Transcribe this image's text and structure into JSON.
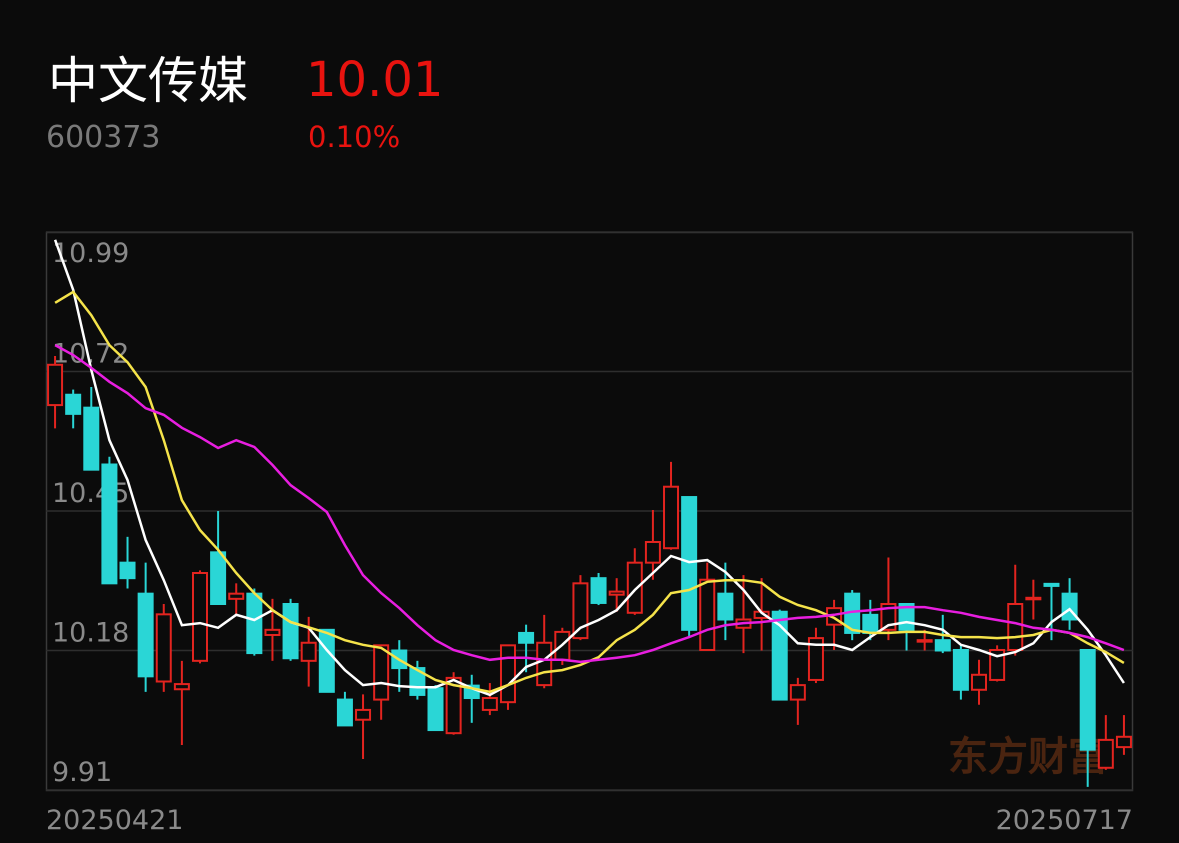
{
  "header": {
    "name": "中文传媒",
    "price": "10.01",
    "code": "600373",
    "change": "0.10%"
  },
  "chart_data": {
    "type": "candlestick",
    "watermark": "东方财富",
    "categories": [
      "20250421",
      null,
      null,
      null,
      null,
      null,
      null,
      null,
      null,
      null,
      null,
      null,
      null,
      null,
      null,
      null,
      null,
      null,
      null,
      null,
      null,
      null,
      null,
      null,
      null,
      null,
      null,
      null,
      null,
      null,
      null,
      null,
      null,
      null,
      null,
      null,
      null,
      null,
      null,
      null,
      null,
      null,
      null,
      null,
      null,
      null,
      null,
      null,
      null,
      null,
      null,
      null,
      null,
      null,
      null,
      null,
      null,
      null,
      null,
      "20250717"
    ],
    "open": [
      10.655,
      10.675,
      10.65,
      10.54,
      10.35,
      10.29,
      10.12,
      10.105,
      10.16,
      10.37,
      10.28,
      10.29,
      10.21,
      10.27,
      10.16,
      10.22,
      10.085,
      10.046,
      10.085,
      10.18,
      10.146,
      10.107,
      10.02,
      10.112,
      10.065,
      10.08,
      10.214,
      10.113,
      10.162,
      10.204,
      10.32,
      10.288,
      10.253,
      10.35,
      10.378,
      10.477,
      10.181,
      10.29,
      10.224,
      10.243,
      10.255,
      10.085,
      10.123,
      10.23,
      10.29,
      10.249,
      10.22,
      10.27,
      10.2,
      10.2,
      10.181,
      10.104,
      10.123,
      10.181,
      10.28,
      10.309,
      10.29,
      10.181,
      9.953,
      9.993
    ],
    "high": [
      10.75,
      10.685,
      10.69,
      10.555,
      10.4,
      10.35,
      10.27,
      10.16,
      10.335,
      10.45,
      10.31,
      10.3,
      10.28,
      10.28,
      10.245,
      10.22,
      10.1,
      10.095,
      10.19,
      10.2,
      10.16,
      10.113,
      10.138,
      10.133,
      10.117,
      10.19,
      10.23,
      10.249,
      10.224,
      10.326,
      10.33,
      10.32,
      10.378,
      10.452,
      10.545,
      10.477,
      10.35,
      10.35,
      10.326,
      10.32,
      10.259,
      10.127,
      10.224,
      10.278,
      10.297,
      10.278,
      10.36,
      10.27,
      10.22,
      10.249,
      10.19,
      10.162,
      10.19,
      10.346,
      10.317,
      10.31,
      10.32,
      10.181,
      10.055,
      10.055
    ],
    "low": [
      10.61,
      10.61,
      10.53,
      10.31,
      10.3,
      10.1,
      10.1,
      9.997,
      10.155,
      10.27,
      10.25,
      10.17,
      10.16,
      10.16,
      10.11,
      10.1,
      10.035,
      9.97,
      10.046,
      10.1,
      10.085,
      10.026,
      10.017,
      10.04,
      10.055,
      10.065,
      10.138,
      10.107,
      10.152,
      10.2,
      10.268,
      10.255,
      10.249,
      10.317,
      10.375,
      10.206,
      10.181,
      10.2,
      10.175,
      10.18,
      10.085,
      10.036,
      10.117,
      10.181,
      10.2,
      10.2,
      10.2,
      10.18,
      10.18,
      10.175,
      10.085,
      10.075,
      10.12,
      10.17,
      10.24,
      10.2,
      10.22,
      9.916,
      9.949,
      9.978
    ],
    "close": [
      10.733,
      10.638,
      10.53,
      10.31,
      10.32,
      10.13,
      10.25,
      10.115,
      10.33,
      10.27,
      10.29,
      10.175,
      10.22,
      10.165,
      10.195,
      10.1,
      10.035,
      10.065,
      10.19,
      10.146,
      10.094,
      10.026,
      10.127,
      10.088,
      10.088,
      10.19,
      10.195,
      10.195,
      10.216,
      10.31,
      10.272,
      10.294,
      10.35,
      10.39,
      10.497,
      10.22,
      10.317,
      10.24,
      10.24,
      10.255,
      10.085,
      10.113,
      10.204,
      10.262,
      10.214,
      10.214,
      10.27,
      10.22,
      10.2,
      10.18,
      10.104,
      10.133,
      10.181,
      10.27,
      10.282,
      10.305,
      10.24,
      9.988,
      10.007,
      10.013
    ],
    "up_color": "#e3241f",
    "down_color": "#2ad6d6",
    "moving_averages": [
      {
        "color": "#ffffff",
        "values": [
          10.975,
          10.878,
          10.723,
          10.587,
          10.51,
          10.394,
          10.316,
          10.229,
          10.233,
          10.224,
          10.249,
          10.239,
          10.258,
          10.235,
          10.224,
          10.181,
          10.142,
          10.113,
          10.117,
          10.111,
          10.109,
          10.109,
          10.123,
          10.107,
          10.094,
          10.113,
          10.148,
          10.162,
          10.191,
          10.224,
          10.239,
          10.258,
          10.297,
          10.33,
          10.363,
          10.351,
          10.355,
          10.332,
          10.297,
          10.253,
          10.229,
          10.194,
          10.191,
          10.191,
          10.181,
          10.206,
          10.229,
          10.235,
          10.229,
          10.22,
          10.191,
          10.181,
          10.169,
          10.177,
          10.194,
          10.235,
          10.26,
          10.22,
          10.171,
          10.117
        ]
      },
      {
        "color": "#f5e34a",
        "values": [
          10.853,
          10.874,
          10.829,
          10.771,
          10.738,
          10.69,
          10.587,
          10.471,
          10.413,
          10.375,
          10.33,
          10.291,
          10.258,
          10.235,
          10.225,
          10.214,
          10.2,
          10.191,
          10.185,
          10.162,
          10.142,
          10.123,
          10.113,
          10.107,
          10.1,
          10.113,
          10.127,
          10.138,
          10.142,
          10.152,
          10.167,
          10.2,
          10.22,
          10.249,
          10.291,
          10.297,
          10.313,
          10.316,
          10.316,
          10.311,
          10.284,
          10.268,
          10.258,
          10.243,
          10.22,
          10.214,
          10.214,
          10.216,
          10.216,
          10.21,
          10.206,
          10.206,
          10.204,
          10.206,
          10.21,
          10.22,
          10.214,
          10.194,
          10.177,
          10.156
        ]
      },
      {
        "color": "#e81ee0",
        "values": [
          10.771,
          10.752,
          10.727,
          10.7,
          10.678,
          10.649,
          10.636,
          10.611,
          10.593,
          10.572,
          10.587,
          10.574,
          10.539,
          10.5,
          10.475,
          10.448,
          10.384,
          10.326,
          10.291,
          10.262,
          10.229,
          10.2,
          10.181,
          10.171,
          10.162,
          10.166,
          10.166,
          10.162,
          10.162,
          10.158,
          10.162,
          10.166,
          10.171,
          10.181,
          10.194,
          10.206,
          10.22,
          10.229,
          10.233,
          10.235,
          10.239,
          10.243,
          10.245,
          10.249,
          10.255,
          10.258,
          10.262,
          10.264,
          10.264,
          10.258,
          10.253,
          10.245,
          10.239,
          10.233,
          10.224,
          10.22,
          10.214,
          10.206,
          10.194,
          10.181
        ]
      }
    ],
    "ylim": [
      9.91,
      10.99
    ],
    "yticks": [
      10.99,
      10.72,
      10.45,
      10.18,
      9.91
    ],
    "grid": true
  }
}
